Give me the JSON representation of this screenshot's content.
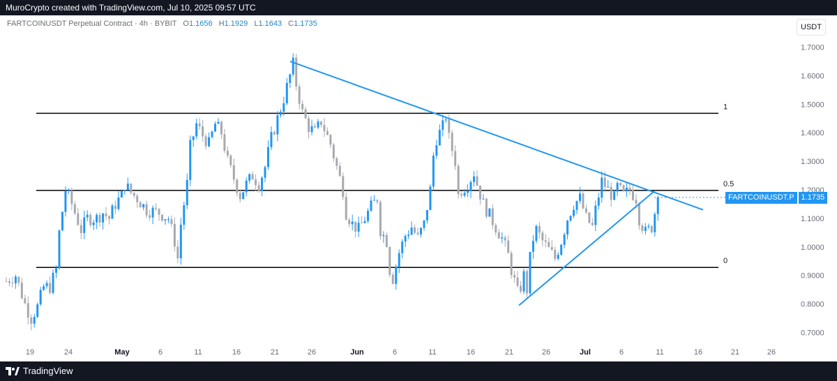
{
  "header": {
    "title": "MuroCrypto created with TradingView.com, Jul 10, 2025 09:57 UTC"
  },
  "legend": {
    "symbol": "FARTCOINUSDT Perpetual Contract · 4h · BYBIT",
    "open_label": "O",
    "open": "1.1656",
    "high_label": "H",
    "high": "1.1929",
    "low_label": "L",
    "low": "1.1643",
    "close_label": "C",
    "close": "1.1735"
  },
  "currency": "USDT",
  "price_tag": {
    "name": "FARTCOINUSDT.P",
    "value": "1.1735"
  },
  "footer": {
    "brand": "TradingView"
  },
  "colors": {
    "up": "#2196f3",
    "down": "#a7a9b0",
    "trendline": "#2196f3",
    "fib": "#000000",
    "label_blue": "#1e88c9"
  },
  "chart_data": {
    "type": "candlestick",
    "y_ticks": [
      "1.7000",
      "1.6000",
      "1.5000",
      "1.4000",
      "1.3000",
      "1.2000",
      "1.1000",
      "1.0000",
      "0.9000",
      "0.8000",
      "0.7000"
    ],
    "x_ticks": [
      "19",
      "24",
      "May",
      "6",
      "11",
      "16",
      "21",
      "26",
      "Jun",
      "6",
      "11",
      "16",
      "21",
      "26",
      "Jul",
      "6",
      "11",
      "16",
      "21",
      "26"
    ],
    "x_ticks_bold": [
      "May",
      "Jun",
      "Jul"
    ],
    "ylim": [
      0.66,
      1.76
    ],
    "fib_levels": [
      {
        "label": "1",
        "price": 1.468
      },
      {
        "label": "0.5",
        "price": 1.198
      },
      {
        "label": "0",
        "price": 0.928
      }
    ],
    "trendlines": [
      {
        "from": [
          "Apr 23",
          1.65
        ],
        "to": [
          "Jul 16",
          1.13
        ]
      },
      {
        "from": [
          "Jun 22",
          0.795
        ],
        "to": [
          "Jul 10",
          1.195
        ]
      }
    ],
    "path": [
      [
        0,
        0.88
      ],
      [
        3,
        0.9
      ],
      [
        6,
        0.8
      ],
      [
        8,
        0.75
      ],
      [
        10,
        0.79
      ],
      [
        12,
        0.86
      ],
      [
        14,
        0.86
      ],
      [
        16,
        0.92
      ],
      [
        17,
        1.05
      ],
      [
        19,
        1.2
      ],
      [
        21,
        1.15
      ],
      [
        24,
        1.06
      ],
      [
        26,
        1.1
      ],
      [
        29,
        1.1
      ],
      [
        31,
        1.12
      ],
      [
        33,
        1.1
      ],
      [
        35,
        1.15
      ],
      [
        37,
        1.18
      ],
      [
        38,
        1.22
      ],
      [
        40,
        1.19
      ],
      [
        42,
        1.17
      ],
      [
        45,
        1.13
      ],
      [
        49,
        1.12
      ],
      [
        52,
        1.1
      ],
      [
        54,
        1.02
      ],
      [
        55,
        0.96
      ],
      [
        56,
        1.08
      ],
      [
        58,
        1.22
      ],
      [
        59,
        1.35
      ],
      [
        61,
        1.43
      ],
      [
        63,
        1.39
      ],
      [
        65,
        1.36
      ],
      [
        67,
        1.43
      ],
      [
        69,
        1.4
      ],
      [
        71,
        1.3
      ],
      [
        73,
        1.24
      ],
      [
        75,
        1.18
      ],
      [
        77,
        1.22
      ],
      [
        79,
        1.25
      ],
      [
        81,
        1.22
      ],
      [
        83,
        1.28
      ],
      [
        85,
        1.38
      ],
      [
        87,
        1.45
      ],
      [
        89,
        1.52
      ],
      [
        91,
        1.6
      ],
      [
        92,
        1.64
      ],
      [
        93,
        1.57
      ],
      [
        95,
        1.47
      ],
      [
        97,
        1.42
      ],
      [
        99,
        1.4
      ],
      [
        101,
        1.44
      ],
      [
        104,
        1.36
      ],
      [
        106,
        1.28
      ],
      [
        108,
        1.2
      ],
      [
        109,
        1.12
      ],
      [
        111,
        1.08
      ],
      [
        113,
        1.06
      ],
      [
        115,
        1.1
      ],
      [
        117,
        1.14
      ],
      [
        119,
        1.17
      ],
      [
        120,
        1.06
      ],
      [
        122,
        1.02
      ],
      [
        123,
        0.92
      ],
      [
        124,
        0.89
      ],
      [
        126,
        0.98
      ],
      [
        128,
        1.04
      ],
      [
        130,
        1.07
      ],
      [
        132,
        1.03
      ],
      [
        134,
        1.08
      ],
      [
        136,
        1.2
      ],
      [
        137,
        1.32
      ],
      [
        138,
        1.38
      ],
      [
        140,
        1.42
      ],
      [
        141,
        1.46
      ],
      [
        142,
        1.38
      ],
      [
        144,
        1.3
      ],
      [
        145,
        1.18
      ],
      [
        146,
        1.2
      ],
      [
        148,
        1.22
      ],
      [
        150,
        1.26
      ],
      [
        151,
        1.22
      ],
      [
        153,
        1.15
      ],
      [
        155,
        1.11
      ],
      [
        157,
        1.07
      ],
      [
        159,
        1.03
      ],
      [
        161,
        0.97
      ],
      [
        162,
        0.92
      ],
      [
        163,
        0.88
      ],
      [
        164,
        0.84
      ],
      [
        165,
        0.86
      ],
      [
        166,
        0.9
      ],
      [
        167,
        0.85
      ],
      [
        168,
        0.96
      ],
      [
        169,
        1.03
      ],
      [
        170,
        1.06
      ],
      [
        172,
        1.02
      ],
      [
        174,
        0.99
      ],
      [
        176,
        0.96
      ],
      [
        178,
        1.02
      ],
      [
        180,
        1.1
      ],
      [
        182,
        1.15
      ],
      [
        184,
        1.17
      ],
      [
        186,
        1.1
      ],
      [
        188,
        1.07
      ],
      [
        189,
        1.13
      ],
      [
        191,
        1.23
      ],
      [
        193,
        1.2
      ],
      [
        195,
        1.17
      ],
      [
        196,
        1.21
      ],
      [
        198,
        1.18
      ],
      [
        200,
        1.2
      ],
      [
        202,
        1.17
      ],
      [
        203,
        1.1
      ],
      [
        205,
        1.05
      ],
      [
        207,
        1.07
      ],
      [
        208,
        1.12
      ],
      [
        209,
        1.1735
      ]
    ]
  }
}
